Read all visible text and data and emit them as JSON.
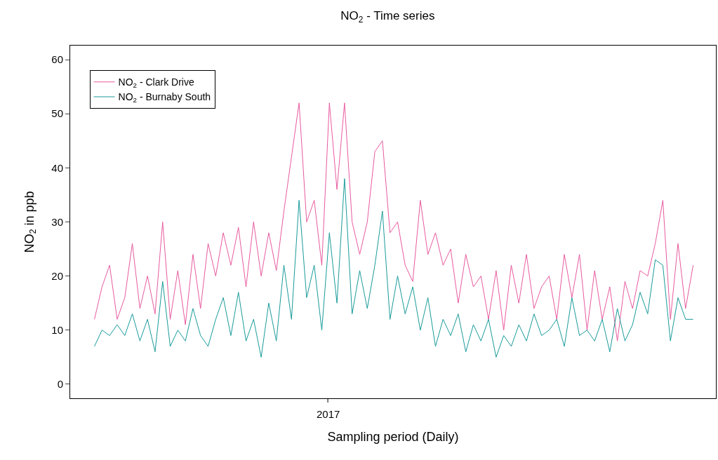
{
  "chart_data": {
    "type": "line",
    "title": "NO$_{2}$ - Time series",
    "xlabel": "Sampling period (Daily)",
    "ylabel": "NO$_{2}$ in ppb",
    "categories": [
      null,
      null,
      null,
      null,
      null,
      null,
      null,
      null,
      null,
      null,
      null,
      null,
      null,
      null,
      null,
      null,
      null,
      null,
      null,
      null,
      null,
      null,
      null,
      null,
      null,
      null,
      null,
      null,
      null,
      null,
      null,
      null,
      null,
      null,
      null,
      null,
      null,
      null,
      null,
      null,
      null,
      null,
      null,
      null,
      null,
      null,
      null,
      null,
      null,
      null,
      null,
      null,
      null,
      null,
      null,
      null,
      null,
      null,
      null,
      null,
      null,
      null,
      null,
      null,
      null,
      null,
      null,
      null,
      null,
      null,
      null,
      null,
      null,
      null,
      null,
      null,
      null,
      null,
      null,
      null
    ],
    "series": [
      {
        "name": "NO$_{2}$ - Clark Drive",
        "color": "#e75a9f",
        "values": [
          12,
          18,
          22,
          12,
          16,
          26,
          14,
          20,
          13,
          30,
          12,
          21,
          11,
          24,
          14,
          26,
          20,
          28,
          22,
          29,
          18,
          30,
          20,
          28,
          21,
          32,
          42,
          52,
          30,
          34,
          22,
          52,
          36,
          52,
          30,
          24,
          30,
          43,
          45,
          28,
          30,
          22,
          19,
          34,
          24,
          28,
          22,
          25,
          15,
          24,
          18,
          20,
          12,
          21,
          10,
          22,
          15,
          24,
          14,
          18,
          20,
          12,
          24,
          16,
          24,
          10,
          21,
          12,
          18,
          8,
          19,
          14,
          21,
          20,
          26,
          34,
          12,
          26,
          14,
          22
        ]
      },
      {
        "name": "NO$_{2}$ - Burnaby South",
        "color": "#1a9a9a",
        "values": [
          7,
          10,
          9,
          11,
          9,
          13,
          8,
          12,
          6,
          19,
          7,
          10,
          8,
          14,
          9,
          7,
          12,
          16,
          9,
          17,
          8,
          12,
          5,
          15,
          8,
          22,
          12,
          34,
          16,
          22,
          10,
          28,
          15,
          38,
          13,
          21,
          14,
          22,
          32,
          12,
          20,
          13,
          18,
          10,
          16,
          7,
          12,
          9,
          13,
          6,
          11,
          8,
          12,
          5,
          9,
          7,
          11,
          8,
          13,
          9,
          10,
          12,
          7,
          16,
          9,
          10,
          8,
          12,
          6,
          14,
          8,
          11,
          17,
          13,
          23,
          22,
          8,
          16,
          12,
          12
        ]
      }
    ],
    "annotations": [
      "2017"
    ],
    "ylim": [
      -2.6,
      62.6
    ],
    "yticks": [
      0,
      10,
      20,
      30,
      40,
      50,
      60
    ],
    "legend": "top left"
  }
}
